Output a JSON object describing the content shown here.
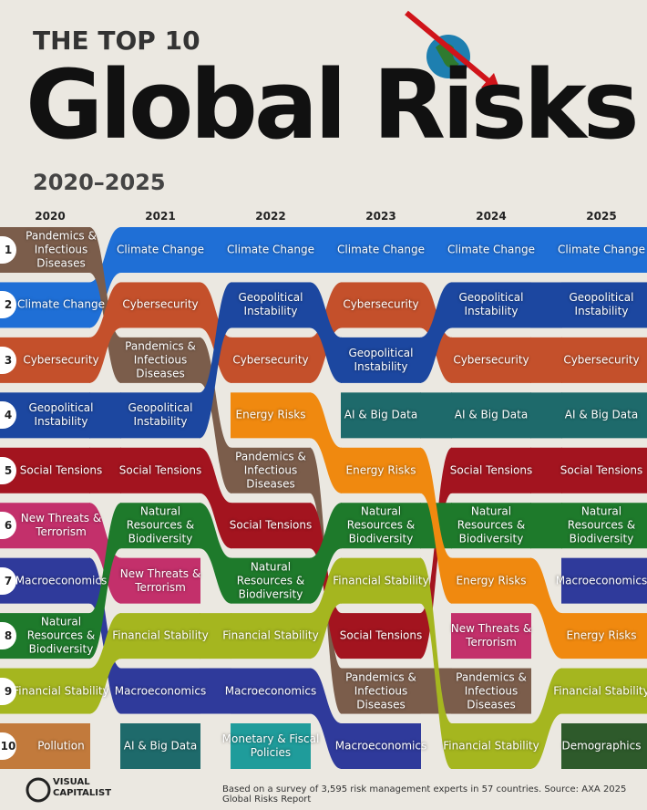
{
  "chart_data": {
    "type": "bump",
    "kicker": "THE TOP 10",
    "title": "Global Risks",
    "subtitle": "2020–2025",
    "categories": [
      "2020",
      "2021",
      "2022",
      "2023",
      "2024",
      "2025"
    ],
    "ylim": [
      1,
      10
    ],
    "yticks": [
      1,
      2,
      3,
      4,
      5,
      6,
      7,
      8,
      9,
      10
    ],
    "series": [
      {
        "name": "Climate Change",
        "color": "#1f6fd6",
        "values": [
          2,
          1,
          1,
          1,
          1,
          1
        ]
      },
      {
        "name": "Pandemics & Infectious Diseases",
        "color": "#7b5d4b",
        "values": [
          1,
          3,
          5,
          9,
          9,
          null
        ]
      },
      {
        "name": "Cybersecurity",
        "color": "#c4502b",
        "values": [
          3,
          2,
          3,
          2,
          3,
          3
        ]
      },
      {
        "name": "Geopolitical Instability",
        "color": "#1c47a0",
        "values": [
          4,
          4,
          2,
          3,
          2,
          2
        ]
      },
      {
        "name": "Social Tensions",
        "color": "#a3141f",
        "values": [
          5,
          5,
          6,
          8,
          5,
          5
        ]
      },
      {
        "name": "New Threats & Terrorism",
        "color": "#c3306b",
        "values": [
          6,
          7,
          null,
          null,
          8,
          null
        ]
      },
      {
        "name": "Macroeconomics",
        "color": "#2f3a9b",
        "values": [
          7,
          9,
          9,
          10,
          null,
          7
        ]
      },
      {
        "name": "Natural Resources & Biodiversity",
        "color": "#1e7a2b",
        "values": [
          8,
          6,
          7,
          6,
          6,
          6
        ]
      },
      {
        "name": "Financial Stability",
        "color": "#a5b61f",
        "values": [
          9,
          8,
          8,
          7,
          10,
          9
        ]
      },
      {
        "name": "Pollution",
        "color": "#c27a3c",
        "values": [
          10,
          null,
          null,
          null,
          null,
          null
        ]
      },
      {
        "name": "AI & Big Data",
        "color": "#1e6a6b",
        "values": [
          null,
          10,
          null,
          4,
          4,
          4
        ]
      },
      {
        "name": "Energy Risks",
        "color": "#f0890f",
        "values": [
          null,
          null,
          4,
          5,
          7,
          8
        ]
      },
      {
        "name": "Monetary & Fiscal Policies",
        "color": "#1f9c9b",
        "values": [
          null,
          null,
          10,
          null,
          null,
          null
        ]
      },
      {
        "name": "Demographics",
        "color": "#2e5a2b",
        "values": [
          null,
          null,
          null,
          null,
          null,
          10
        ]
      }
    ],
    "logo": "VISUAL CAPITALIST",
    "source": "Based on a survey of 3,595 risk management experts in 57 countries. Source: AXA 2025 Global Risks Report"
  }
}
